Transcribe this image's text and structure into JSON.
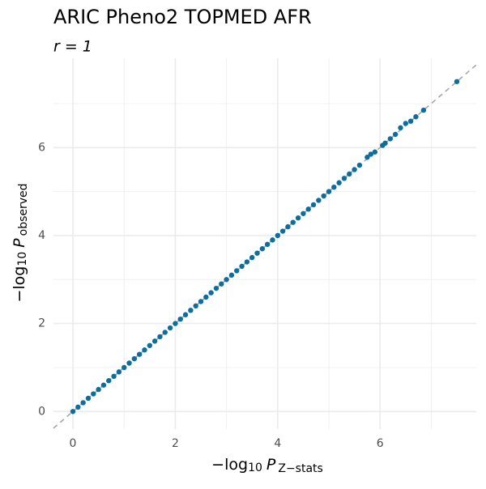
{
  "chart_data": {
    "type": "scatter",
    "title": "ARIC Pheno2 TOPMED AFR",
    "subtitle": "r = 1",
    "x_label": [
      "−log",
      "10",
      "P",
      "Z−stats"
    ],
    "y_label": [
      "−log",
      "10",
      "P",
      "observed"
    ],
    "xlim": [
      -0.38,
      7.88
    ],
    "ylim": [
      -0.4,
      8.03
    ],
    "xticks": [
      0,
      2,
      4,
      6
    ],
    "yticks": [
      0,
      2,
      4,
      6
    ],
    "minor_xticks": [
      1,
      3,
      5,
      7
    ],
    "minor_yticks": [
      1,
      3,
      5,
      7
    ],
    "grid": true,
    "series": [
      {
        "color": "#0b6e9e",
        "x": [
          0,
          0.1,
          0.2,
          0.3,
          0.4,
          0.5,
          0.6,
          0.7,
          0.8,
          0.9,
          1,
          1.1,
          1.2,
          1.3,
          1.4,
          1.5,
          1.6,
          1.7,
          1.8,
          1.9,
          2,
          2.1,
          2.2,
          2.3,
          2.4,
          2.5,
          2.6,
          2.7,
          2.8,
          2.9,
          3,
          3.1,
          3.2,
          3.3,
          3.4,
          3.5,
          3.6,
          3.7,
          3.8,
          3.9,
          4,
          4.1,
          4.2,
          4.3,
          4.4,
          4.5,
          4.6,
          4.7,
          4.8,
          4.9,
          5,
          5.1,
          5.2,
          5.3,
          5.4,
          5.5,
          5.6,
          5.75,
          5.82,
          5.9,
          6.05,
          6.1,
          6.2,
          6.3,
          6.4,
          6.5,
          6.6,
          6.7,
          6.85,
          7.5
        ],
        "values": [
          0,
          0.1,
          0.2,
          0.3,
          0.4,
          0.5,
          0.6,
          0.7,
          0.8,
          0.9,
          1,
          1.1,
          1.2,
          1.3,
          1.4,
          1.5,
          1.6,
          1.7,
          1.8,
          1.9,
          2,
          2.1,
          2.2,
          2.3,
          2.4,
          2.5,
          2.6,
          2.7,
          2.8,
          2.9,
          3,
          3.1,
          3.2,
          3.3,
          3.4,
          3.5,
          3.6,
          3.7,
          3.8,
          3.9,
          4,
          4.1,
          4.2,
          4.3,
          4.4,
          4.5,
          4.6,
          4.7,
          4.8,
          4.9,
          5,
          5.1,
          5.2,
          5.3,
          5.4,
          5.5,
          5.6,
          5.78,
          5.85,
          5.9,
          6.05,
          6.1,
          6.2,
          6.3,
          6.45,
          6.55,
          6.6,
          6.7,
          6.85,
          7.5
        ]
      }
    ]
  }
}
